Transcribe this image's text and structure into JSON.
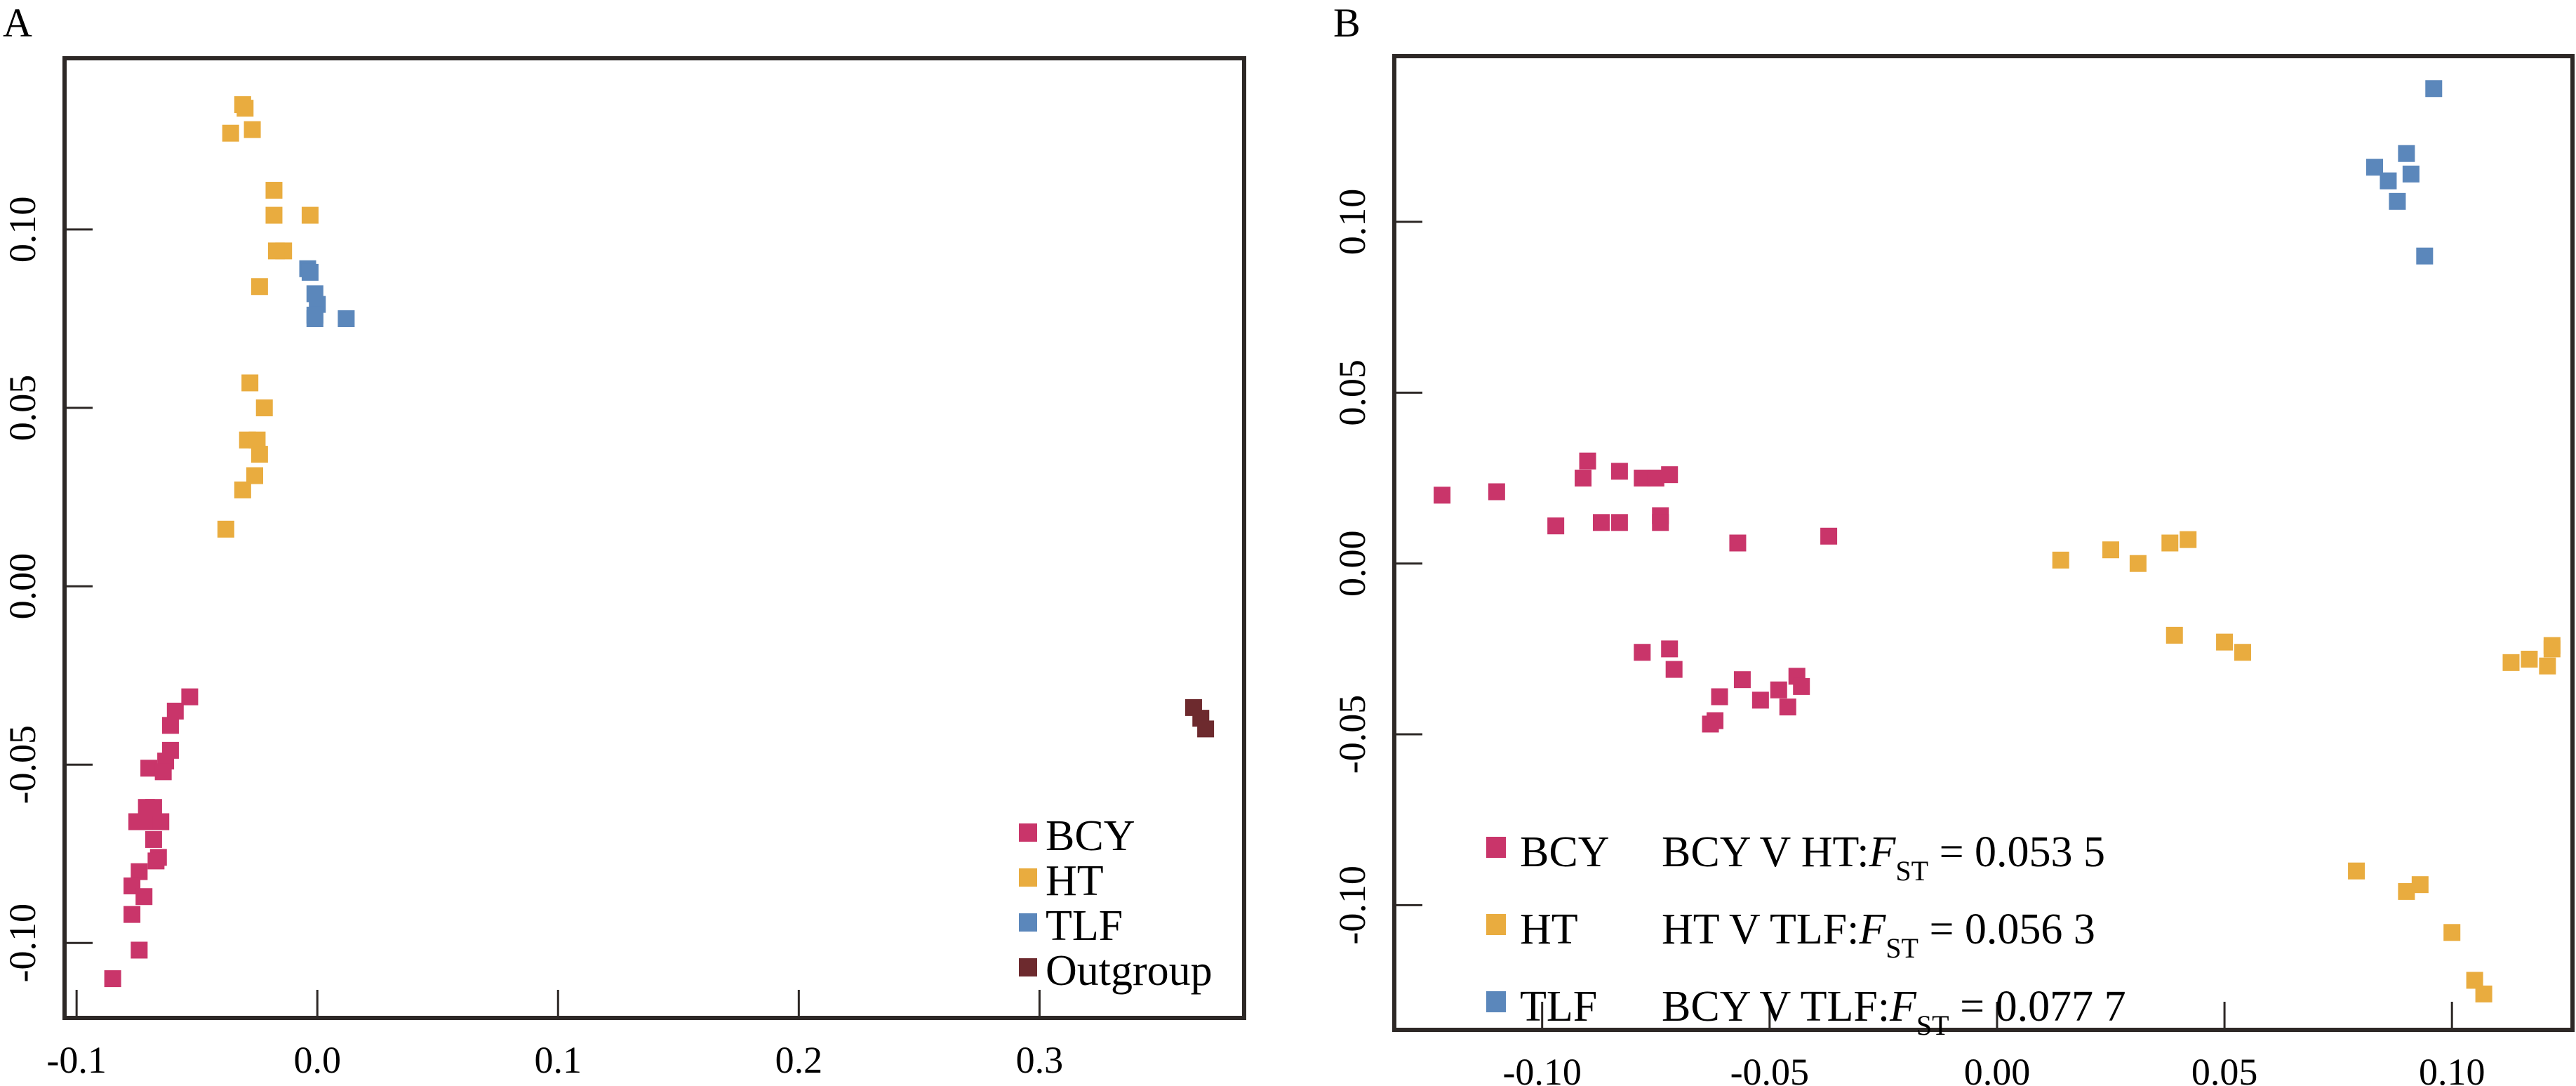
{
  "colors": {
    "BCY": "#c9356a",
    "HT": "#e9ac3f",
    "TLF": "#5b87bb",
    "Outgroup": "#6d2a2e",
    "axis": "#2d2826"
  },
  "chart_data": [
    {
      "panel": "A",
      "type": "scatter",
      "title": "",
      "xlabel": "",
      "ylabel": "",
      "xlim": [
        -0.105,
        0.385
      ],
      "ylim": [
        -0.121,
        0.148
      ],
      "xticks": [
        -0.1,
        0.0,
        0.1,
        0.2,
        0.3
      ],
      "xtick_labels": [
        "-0.1",
        "0.0",
        "0.1",
        "0.2",
        "0.3"
      ],
      "yticks": [
        0.1,
        0.05,
        0.0,
        -0.05,
        -0.1
      ],
      "ytick_labels": [
        "0.10",
        "0.05",
        "0.00",
        "-0.05",
        "-0.10"
      ],
      "grid": false,
      "legend_position": "bottom-right",
      "legend": [
        "BCY",
        "HT",
        "TLF",
        "Outgroup"
      ],
      "series": [
        {
          "name": "BCY",
          "x": [
            -0.053,
            -0.059,
            -0.061,
            -0.061,
            -0.063,
            -0.07,
            -0.064,
            -0.068,
            -0.07,
            -0.065,
            -0.075,
            -0.066,
            -0.067,
            -0.074,
            -0.077,
            -0.072,
            -0.077,
            -0.074,
            -0.085,
            -0.071,
            -0.068
          ],
          "y": [
            -0.031,
            -0.035,
            -0.039,
            -0.046,
            -0.049,
            -0.051,
            -0.052,
            -0.062,
            -0.066,
            -0.066,
            -0.066,
            -0.076,
            -0.077,
            -0.08,
            -0.084,
            -0.087,
            -0.092,
            -0.102,
            -0.11,
            -0.062,
            -0.071
          ]
        },
        {
          "name": "HT",
          "x": [
            -0.031,
            -0.03,
            -0.036,
            -0.027,
            -0.018,
            -0.018,
            -0.003,
            -0.014,
            -0.017,
            -0.024,
            -0.028,
            -0.022,
            -0.029,
            -0.025,
            -0.024,
            -0.026,
            -0.031,
            -0.038
          ],
          "y": [
            0.135,
            0.134,
            0.127,
            0.128,
            0.111,
            0.104,
            0.104,
            0.094,
            0.094,
            0.084,
            0.057,
            0.05,
            0.041,
            0.041,
            0.037,
            0.031,
            0.027,
            0.016
          ]
        },
        {
          "name": "TLF",
          "x": [
            -0.004,
            -0.003,
            -0.001,
            0.0,
            -0.001,
            0.012,
            -0.001
          ],
          "y": [
            0.089,
            0.088,
            0.082,
            0.079,
            0.075,
            0.075,
            0.076
          ]
        },
        {
          "name": "Outgroup",
          "x": [
            0.364,
            0.367,
            0.369
          ],
          "y": [
            -0.034,
            -0.037,
            -0.04
          ]
        }
      ]
    },
    {
      "panel": "B",
      "type": "scatter",
      "title": "",
      "xlabel": "",
      "ylabel": "",
      "xlim": [
        -0.1325,
        0.1265
      ],
      "ylim": [
        -0.1365,
        0.1485
      ],
      "xticks": [
        -0.1,
        -0.05,
        0.0,
        0.05,
        0.1
      ],
      "xtick_labels": [
        "-0.10",
        "-0.05",
        "0.00",
        "0.05",
        "0.10"
      ],
      "yticks": [
        0.1,
        0.05,
        0.0,
        -0.05,
        -0.1
      ],
      "ytick_labels": [
        "0.10",
        "0.05",
        "0.00",
        "-0.05",
        "-0.10"
      ],
      "grid": false,
      "legend_position": "bottom-left",
      "legend": [
        "BCY",
        "HT",
        "TLF"
      ],
      "annotations": [
        {
          "pre": "BCY V HT:",
          "var": "F",
          "sub": "ST",
          "post": " = 0.053 5"
        },
        {
          "pre": "HT V TLF:",
          "var": "F",
          "sub": "ST",
          "post": " = 0.056 3"
        },
        {
          "pre": "BCY V TLF:",
          "var": "F",
          "sub": "ST",
          "post": " = 0.077 7"
        }
      ],
      "series": [
        {
          "name": "BCY",
          "x": [
            -0.122,
            -0.11,
            -0.097,
            -0.091,
            -0.09,
            -0.087,
            -0.083,
            -0.083,
            -0.078,
            -0.075,
            -0.072,
            -0.074,
            -0.074,
            -0.057,
            -0.037,
            -0.078,
            -0.072,
            -0.071,
            -0.063,
            -0.062,
            -0.061,
            -0.056,
            -0.052,
            -0.048,
            -0.046,
            -0.044,
            -0.043
          ],
          "y": [
            0.02,
            0.021,
            0.011,
            0.025,
            0.03,
            0.012,
            0.012,
            0.027,
            0.025,
            0.025,
            0.026,
            0.014,
            0.012,
            0.006,
            0.008,
            -0.026,
            -0.025,
            -0.031,
            -0.047,
            -0.046,
            -0.039,
            -0.034,
            -0.04,
            -0.037,
            -0.042,
            -0.033,
            -0.036
          ]
        },
        {
          "name": "HT",
          "x": [
            0.014,
            0.025,
            0.031,
            0.038,
            0.042,
            0.039,
            0.05,
            0.054,
            0.113,
            0.117,
            0.121,
            0.122,
            0.122,
            0.079,
            0.09,
            0.093,
            0.1,
            0.105,
            0.107
          ],
          "y": [
            0.001,
            0.004,
            0.0,
            0.006,
            0.007,
            -0.021,
            -0.023,
            -0.026,
            -0.029,
            -0.028,
            -0.03,
            -0.025,
            -0.024,
            -0.09,
            -0.096,
            -0.094,
            -0.108,
            -0.122,
            -0.126
          ]
        },
        {
          "name": "TLF",
          "x": [
            0.096,
            0.083,
            0.09,
            0.086,
            0.091,
            0.088,
            0.094
          ],
          "y": [
            0.139,
            0.116,
            0.12,
            0.112,
            0.114,
            0.106,
            0.09
          ]
        }
      ]
    }
  ]
}
